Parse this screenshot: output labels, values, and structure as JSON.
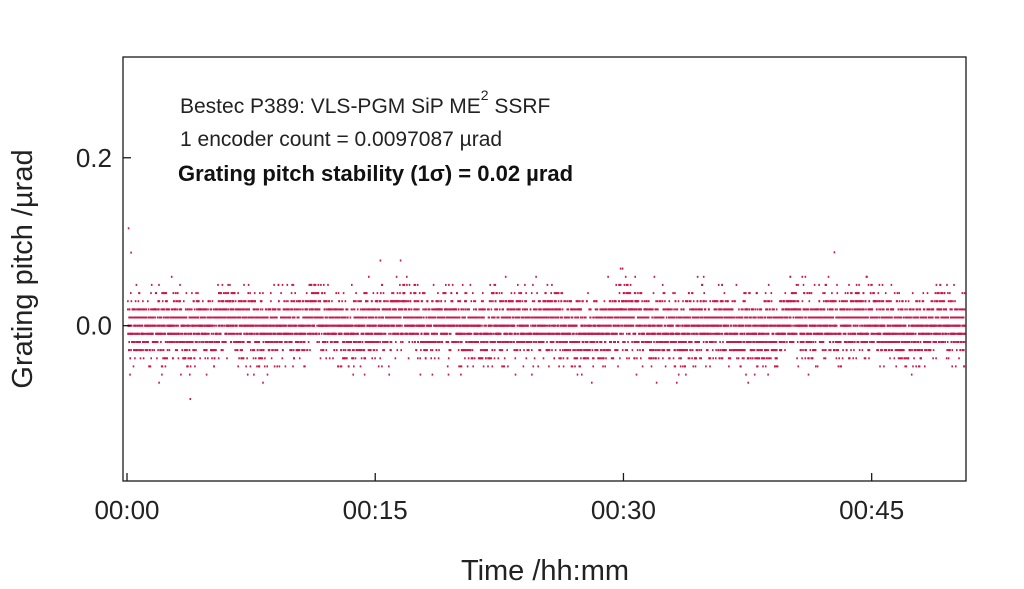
{
  "chart_data": {
    "type": "scatter",
    "title": "",
    "xlabel": "Time /hh:mm",
    "ylabel": "Grating pitch /µrad",
    "x_unit": "hh:mm",
    "xlim": [
      "00:00",
      "00:50"
    ],
    "ylim": [
      -0.185,
      0.32
    ],
    "x_ticks": [
      "00:00",
      "00:15",
      "00:30",
      "00:45"
    ],
    "y_ticks": [
      0.0,
      0.2
    ],
    "y_tick_labels": [
      "0.0",
      "0.2"
    ],
    "grid": false,
    "legend": "none",
    "marker_color": "#c8194a",
    "annotations": {
      "line1_text": "Bestec P389: VLS-PGM SiP ME",
      "line1_superscript": "2",
      "line1_suffix": " SSRF",
      "line2": "1 encoder count = 0.0097087 µrad",
      "line3": "Grating pitch stability (1σ) = 0.02 µrad"
    },
    "series": [
      {
        "encoder_count_urad": 0.0097087,
        "sigma_urad": 0.02,
        "x_start": "00:00",
        "x_end": "00:50",
        "y_min_observed": -0.088,
        "y_max_observed": 0.116,
        "y_quantized_levels_core": [
          -0.0388,
          -0.0291,
          -0.0194,
          -0.0097,
          0.0,
          0.0097,
          0.0194,
          0.0291
        ]
      }
    ]
  }
}
